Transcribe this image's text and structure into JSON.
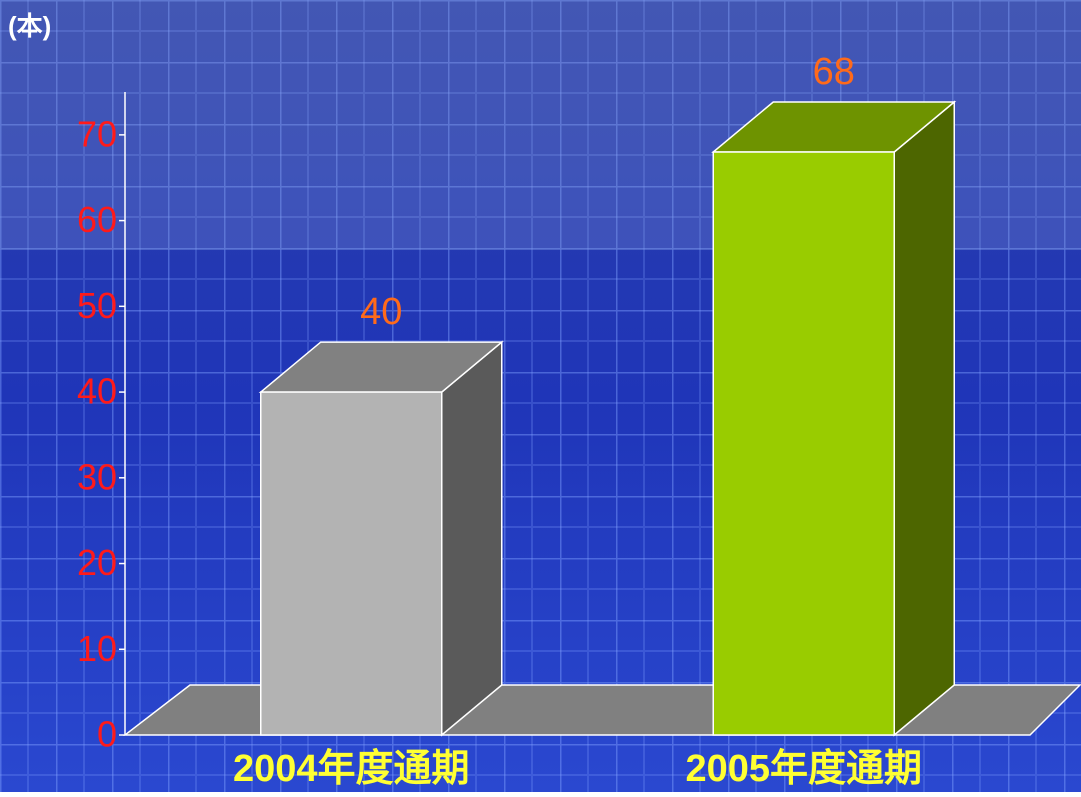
{
  "chart_data": {
    "type": "bar3d",
    "unit_label": "(本)",
    "categories": [
      "2004年度通期",
      "2005年度通期"
    ],
    "values": [
      40,
      68
    ],
    "colors": [
      "#b3b3b3",
      "#99cc00"
    ],
    "ylim": [
      0,
      75
    ],
    "yticks": [
      0,
      10,
      20,
      30,
      40,
      50,
      60,
      70
    ]
  }
}
